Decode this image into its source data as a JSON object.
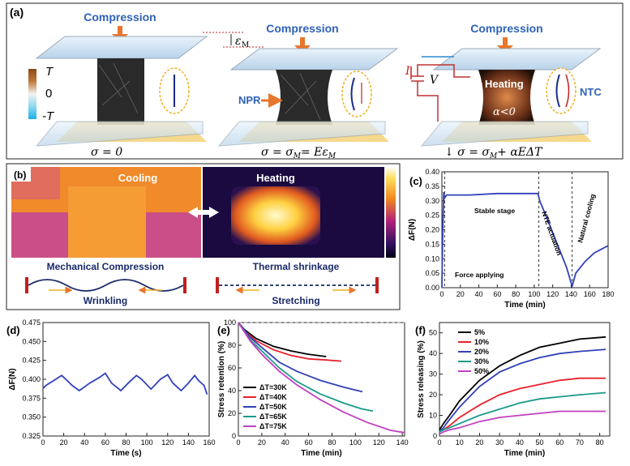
{
  "panel_a": {
    "label": "(a)",
    "compression": "Compression",
    "colorbar": {
      "top": "T",
      "mid": "0",
      "bottom": "-T"
    },
    "strain_label": "ε",
    "strain_sub": "M",
    "npr": "NPR",
    "ntc": "NTC",
    "heating": "Heating",
    "alpha": "α<0",
    "current": "I",
    "voltage": "V",
    "eq1": "σ = 0",
    "eq2": "σ = σ",
    "eq2_tail": "= Eε",
    "eq3": "↓ σ = σ",
    "eq3_tail": "+ αEΔT",
    "sub_m": "M"
  },
  "panel_b": {
    "label": "(b)",
    "cooling": "Cooling",
    "heating": "Heating",
    "mech": "Mechanical Compression",
    "thermal": "Thermal shrinkage",
    "wrinkling": "Wrinkling",
    "stretching": "Stretching"
  },
  "colors": {
    "black": "#000000",
    "red": "#e8212b",
    "blue": "#3141b8",
    "teal": "#1a9a8a",
    "magenta": "#c040c0",
    "label_blue": "#2f62b7",
    "arrow_orange": "#e8762c"
  },
  "charts": {
    "c": {
      "label": "(c)",
      "type": "line",
      "xlabel": "Time (min)",
      "ylabel": "ΔF(N)",
      "xlim": [
        0,
        180
      ],
      "ylim": [
        0,
        0.4
      ],
      "xticks": [
        0,
        20,
        40,
        60,
        80,
        100,
        120,
        140,
        160,
        180
      ],
      "yticks": [
        0.0,
        0.05,
        0.1,
        0.15,
        0.2,
        0.25,
        0.3,
        0.35,
        0.4
      ],
      "vlines": [
        3,
        105,
        141
      ],
      "annotations": [
        "Stable stage",
        "NTE actuation",
        "Natural cooling",
        "Force applying"
      ],
      "series": [
        {
          "x": [
            0,
            1,
            2,
            3,
            5,
            10,
            30,
            60,
            90,
            104,
            106,
            115,
            125,
            135,
            141,
            145,
            155,
            165,
            180
          ],
          "y": [
            0.0,
            0.2,
            0.33,
            0.31,
            0.32,
            0.32,
            0.32,
            0.325,
            0.325,
            0.325,
            0.3,
            0.23,
            0.15,
            0.07,
            0.005,
            0.05,
            0.09,
            0.12,
            0.145
          ]
        }
      ]
    },
    "d": {
      "label": "(d)",
      "type": "line",
      "xlabel": "Time (s)",
      "ylabel": "ΔF(N)",
      "xlim": [
        0,
        160
      ],
      "ylim": [
        0.325,
        0.475
      ],
      "xticks": [
        0,
        20,
        40,
        60,
        80,
        100,
        120,
        140,
        160
      ],
      "yticks": [
        0.325,
        0.35,
        0.375,
        0.4,
        0.425,
        0.45,
        0.475
      ],
      "series": [
        {
          "x": [
            0,
            3,
            10,
            18,
            22,
            28,
            35,
            45,
            55,
            60,
            66,
            75,
            82,
            90,
            95,
            104,
            113,
            120,
            125,
            133,
            140,
            146,
            150,
            155,
            158
          ],
          "y": [
            0.388,
            0.392,
            0.398,
            0.405,
            0.4,
            0.392,
            0.385,
            0.395,
            0.403,
            0.408,
            0.395,
            0.385,
            0.395,
            0.405,
            0.4,
            0.387,
            0.4,
            0.406,
            0.395,
            0.385,
            0.395,
            0.405,
            0.398,
            0.392,
            0.38
          ]
        }
      ]
    },
    "e": {
      "label": "(e)",
      "type": "line",
      "xlabel": "Time (min)",
      "ylabel": "Stress retention (%)",
      "xlim": [
        0,
        142
      ],
      "ylim": [
        0,
        100
      ],
      "xticks": [
        0,
        20,
        40,
        60,
        80,
        100,
        120,
        140
      ],
      "yticks": [
        0,
        20,
        40,
        60,
        80,
        100
      ],
      "hline": 100,
      "series": [
        {
          "name": "ΔT=30K",
          "color": "#000000",
          "x": [
            0,
            5,
            15,
            30,
            45,
            60,
            75
          ],
          "y": [
            100,
            94,
            86,
            79,
            75,
            72,
            70
          ]
        },
        {
          "name": "ΔT=40K",
          "color": "#e8212b",
          "x": [
            0,
            5,
            15,
            30,
            45,
            60,
            75,
            88
          ],
          "y": [
            100,
            93,
            84,
            76,
            71,
            68,
            67,
            66
          ]
        },
        {
          "name": "ΔT=50K",
          "color": "#3141b8",
          "x": [
            0,
            10,
            20,
            35,
            50,
            70,
            90,
            106
          ],
          "y": [
            100,
            87,
            78,
            65,
            57,
            49,
            43,
            39
          ]
        },
        {
          "name": "ΔT=65K",
          "color": "#1a9a8a",
          "x": [
            0,
            10,
            20,
            35,
            50,
            70,
            90,
            105,
            115
          ],
          "y": [
            100,
            85,
            75,
            60,
            48,
            37,
            29,
            24,
            22
          ]
        },
        {
          "name": "ΔT=75K",
          "color": "#c040c0",
          "x": [
            0,
            10,
            20,
            35,
            50,
            70,
            90,
            110,
            130,
            142
          ],
          "y": [
            100,
            84,
            72,
            57,
            45,
            32,
            21,
            12,
            5,
            3
          ]
        }
      ]
    },
    "f": {
      "label": "(f)",
      "type": "line",
      "xlabel": "Time (min)",
      "ylabel": "Stress releasing (%)",
      "xlim": [
        0,
        85
      ],
      "ylim": [
        0,
        55
      ],
      "xticks": [
        0,
        10,
        20,
        30,
        40,
        50,
        60,
        70,
        80
      ],
      "yticks": [
        0,
        10,
        20,
        30,
        40,
        50
      ],
      "series": [
        {
          "name": "5%",
          "color": "#000000",
          "x": [
            0,
            2,
            5,
            10,
            20,
            30,
            40,
            50,
            60,
            70,
            83
          ],
          "y": [
            3,
            6,
            10,
            17,
            27,
            34,
            39,
            43,
            45,
            47,
            48
          ]
        },
        {
          "name": "10%",
          "color": "#e8212b",
          "x": [
            0,
            2,
            5,
            10,
            20,
            30,
            40,
            50,
            60,
            70,
            83
          ],
          "y": [
            2,
            3,
            5,
            9,
            15,
            20,
            23,
            25,
            27,
            28,
            28
          ]
        },
        {
          "name": "20%",
          "color": "#3141b8",
          "x": [
            0,
            2,
            5,
            10,
            20,
            30,
            40,
            50,
            60,
            70,
            83
          ],
          "y": [
            2,
            4,
            8,
            14,
            24,
            31,
            35,
            38,
            40,
            41,
            42
          ]
        },
        {
          "name": "30%",
          "color": "#1a9a8a",
          "x": [
            0,
            2,
            5,
            10,
            20,
            30,
            40,
            50,
            60,
            70,
            83
          ],
          "y": [
            2,
            3,
            4,
            6,
            10,
            13,
            16,
            18,
            19,
            20,
            21
          ]
        },
        {
          "name": "50%",
          "color": "#c040c0",
          "x": [
            0,
            2,
            5,
            10,
            20,
            30,
            40,
            50,
            60,
            70,
            83
          ],
          "y": [
            1,
            2,
            3,
            4,
            7,
            9,
            10,
            11,
            12,
            12,
            12
          ]
        }
      ]
    }
  }
}
